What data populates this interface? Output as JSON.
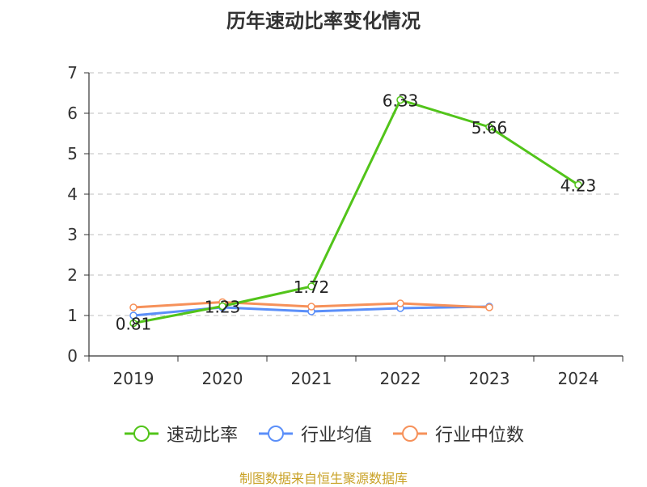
{
  "chart_data": {
    "type": "line",
    "title": "历年速动比率变化情况",
    "categories": [
      "2019",
      "2020",
      "2021",
      "2022",
      "2023",
      "2024"
    ],
    "ylim": [
      0,
      7
    ],
    "yticks": [
      "0",
      "1",
      "2",
      "3",
      "4",
      "5",
      "6",
      "7"
    ],
    "grid": true,
    "legend_position": "bottom",
    "series": [
      {
        "name": "速动比率",
        "color": "#52c41a",
        "values": [
          0.81,
          1.23,
          1.72,
          6.33,
          5.66,
          4.23
        ],
        "labels": [
          "0.81",
          "1.23",
          "1.72",
          "6.33",
          "5.66",
          "4.23"
        ]
      },
      {
        "name": "行业均值",
        "color": "#5b8ff9",
        "values": [
          1.0,
          1.2,
          1.1,
          1.18,
          1.22,
          null
        ]
      },
      {
        "name": "行业中位数",
        "color": "#f6915a",
        "values": [
          1.2,
          1.33,
          1.22,
          1.3,
          1.2,
          null
        ]
      }
    ],
    "source": "制图数据来自恒生聚源数据库"
  }
}
